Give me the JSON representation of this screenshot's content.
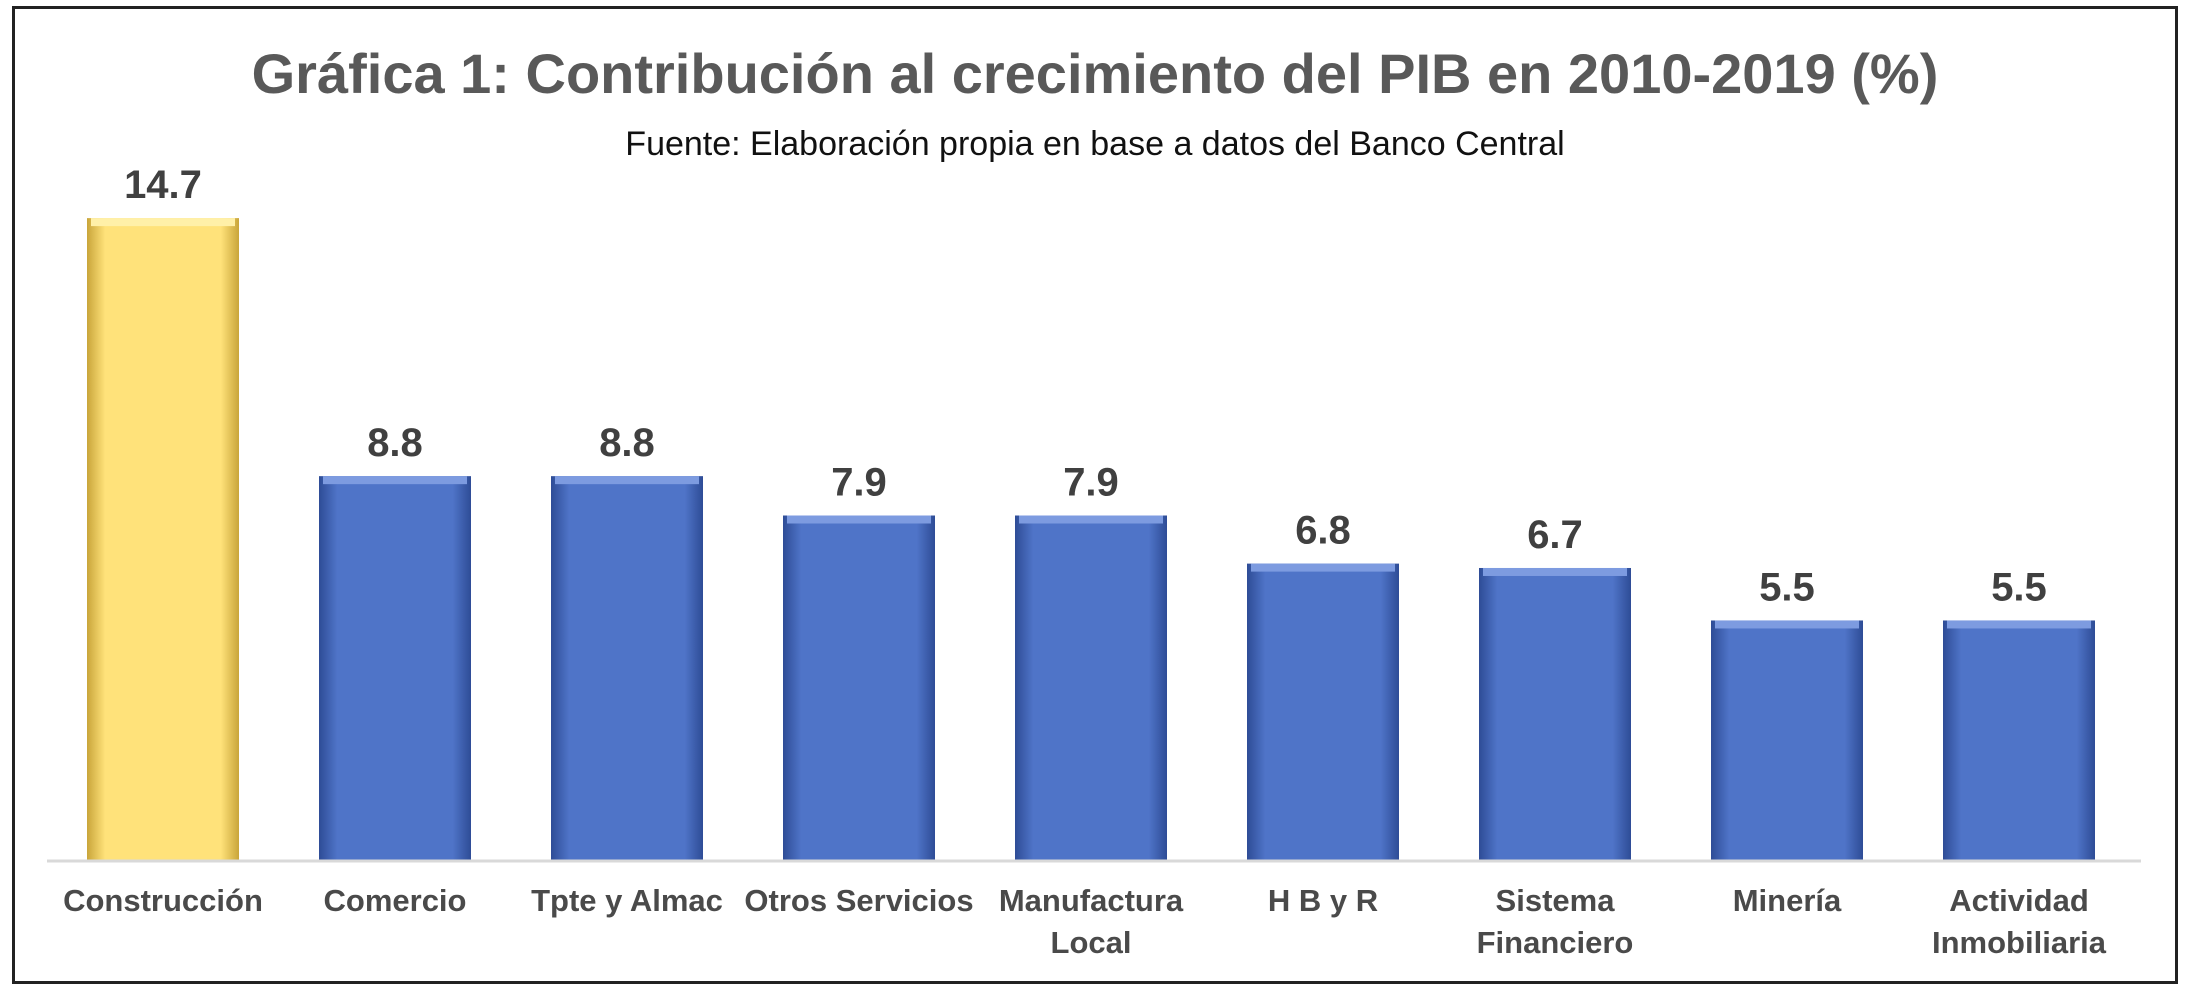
{
  "chart_data": {
    "type": "bar",
    "title": "Gráfica 1: Contribución al crecimiento del PIB en 2010-2019 (%)",
    "subtitle": "Fuente: Elaboración propia en base a datos del Banco Central",
    "categories": [
      [
        "Construcción"
      ],
      [
        "Comercio"
      ],
      [
        "Tpte y Almac"
      ],
      [
        "Otros Servicios"
      ],
      [
        "Manufactura",
        "Local"
      ],
      [
        "H B y R"
      ],
      [
        "Sistema",
        "Financiero"
      ],
      [
        "Minería"
      ],
      [
        "Actividad",
        "Inmobiliaria"
      ]
    ],
    "values": [
      14.7,
      8.8,
      8.8,
      7.9,
      7.9,
      6.8,
      6.7,
      5.5,
      5.5
    ],
    "value_labels": [
      "14.7",
      "8.8",
      "8.8",
      "7.9",
      "7.9",
      "6.8",
      "6.7",
      "5.5",
      "5.5"
    ],
    "highlight_index": 0,
    "colors": {
      "highlight": "#FFE27A",
      "bar": "#4F74C8",
      "axis": "#d9d9d9"
    },
    "ylim": [
      0,
      15
    ],
    "grid": false,
    "xlabel": "",
    "ylabel": ""
  }
}
